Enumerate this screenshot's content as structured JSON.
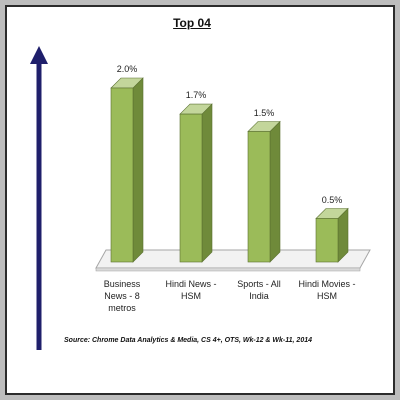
{
  "chart_data": {
    "type": "bar",
    "title": "Top 04",
    "categories": [
      "Business News - 8 metros",
      "Hindi News - HSM",
      "Sports - All India",
      "Hindi Movies - HSM"
    ],
    "category_lines": [
      [
        "Business",
        "News - 8",
        "metros"
      ],
      [
        "Hindi News -",
        "HSM"
      ],
      [
        "Sports - All",
        "India"
      ],
      [
        "Hindi Movies -",
        "HSM"
      ]
    ],
    "values": [
      2.0,
      1.7,
      1.5,
      0.5
    ],
    "data_labels": [
      "2.0%",
      "1.7%",
      "1.5%",
      "0.5%"
    ],
    "ylim": [
      0,
      2.0
    ],
    "source": "Source: Chrome Data Analytics & Media, CS 4+,  OTS, Wk-12 & Wk-11, 2014",
    "colors": {
      "bar_front": "#9bbb59",
      "bar_side": "#6f8a3a",
      "bar_top": "#c3d69b",
      "floor": "#f2f2f2",
      "arrow": "#1f1f6b"
    }
  }
}
